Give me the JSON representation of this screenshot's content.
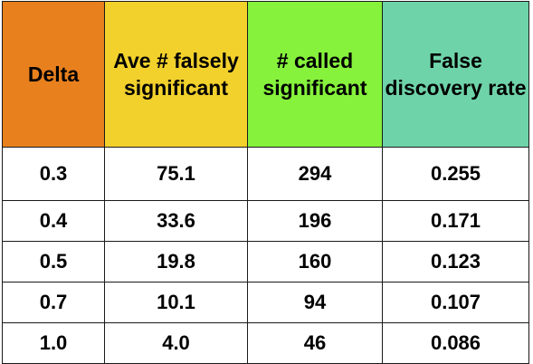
{
  "table": {
    "headers": [
      {
        "label": "Delta",
        "color": "#E8801E"
      },
      {
        "label": "Ave # falsely significant",
        "color": "#F2D12C"
      },
      {
        "label": "# called significant",
        "color": "#86F23C"
      },
      {
        "label": "False discovery rate",
        "color": "#6FD3A9"
      }
    ],
    "rows": [
      [
        "0.3",
        "75.1",
        "294",
        "0.255"
      ],
      [
        "0.4",
        "33.6",
        "196",
        "0.171"
      ],
      [
        "0.5",
        "19.8",
        "160",
        "0.123"
      ],
      [
        "0.7",
        "10.1",
        "94",
        "0.107"
      ],
      [
        "1.0",
        "4.0",
        "46",
        "0.086"
      ]
    ]
  }
}
